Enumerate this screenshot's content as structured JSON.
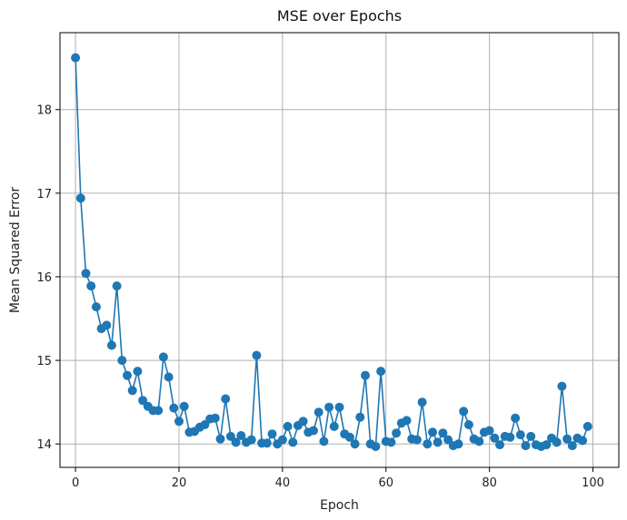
{
  "chart_data": {
    "type": "line",
    "title": "MSE over Epochs",
    "xlabel": "Epoch",
    "ylabel": "Mean Squared Error",
    "xlim": [
      -3,
      105
    ],
    "ylim": [
      13.72,
      18.92
    ],
    "xticks": [
      0,
      20,
      40,
      60,
      80,
      100
    ],
    "yticks": [
      14,
      15,
      16,
      17,
      18
    ],
    "grid": true,
    "series": [
      {
        "marker": "circle",
        "color": "#1f77b4",
        "x": [
          0,
          1,
          2,
          3,
          4,
          5,
          6,
          7,
          8,
          9,
          10,
          11,
          12,
          13,
          14,
          15,
          16,
          17,
          18,
          19,
          20,
          21,
          22,
          23,
          24,
          25,
          26,
          27,
          28,
          29,
          30,
          31,
          32,
          33,
          34,
          35,
          36,
          37,
          38,
          39,
          40,
          41,
          42,
          43,
          44,
          45,
          46,
          47,
          48,
          49,
          50,
          51,
          52,
          53,
          54,
          55,
          56,
          57,
          58,
          59,
          60,
          61,
          62,
          63,
          64,
          65,
          66,
          67,
          68,
          69,
          70,
          71,
          72,
          73,
          74,
          75,
          76,
          77,
          78,
          79,
          80,
          81,
          82,
          83,
          84,
          85,
          86,
          87,
          88,
          89,
          90,
          91,
          92,
          93,
          94,
          95,
          96,
          97,
          98,
          99
        ],
        "values": [
          18.62,
          16.94,
          16.04,
          15.89,
          15.64,
          15.38,
          15.42,
          15.18,
          15.89,
          15.0,
          14.82,
          14.64,
          14.87,
          14.52,
          14.45,
          14.4,
          14.4,
          15.04,
          14.8,
          14.43,
          14.27,
          14.45,
          14.14,
          14.15,
          14.2,
          14.23,
          14.3,
          14.31,
          14.06,
          14.54,
          14.09,
          14.02,
          14.1,
          14.02,
          14.05,
          15.06,
          14.01,
          14.01,
          14.12,
          14.0,
          14.05,
          14.21,
          14.02,
          14.22,
          14.27,
          14.14,
          14.16,
          14.38,
          14.03,
          14.44,
          14.21,
          14.44,
          14.12,
          14.08,
          14.0,
          14.32,
          14.82,
          14.0,
          13.97,
          14.87,
          14.03,
          14.02,
          14.13,
          14.25,
          14.28,
          14.06,
          14.05,
          14.5,
          14.0,
          14.14,
          14.02,
          14.13,
          14.05,
          13.98,
          14.0,
          14.39,
          14.23,
          14.06,
          14.03,
          14.14,
          14.16,
          14.07,
          13.99,
          14.09,
          14.08,
          14.31,
          14.11,
          13.98,
          14.09,
          13.99,
          13.97,
          13.99,
          14.07,
          14.02,
          14.69,
          14.06,
          13.98,
          14.07,
          14.04,
          14.21
        ]
      }
    ]
  }
}
